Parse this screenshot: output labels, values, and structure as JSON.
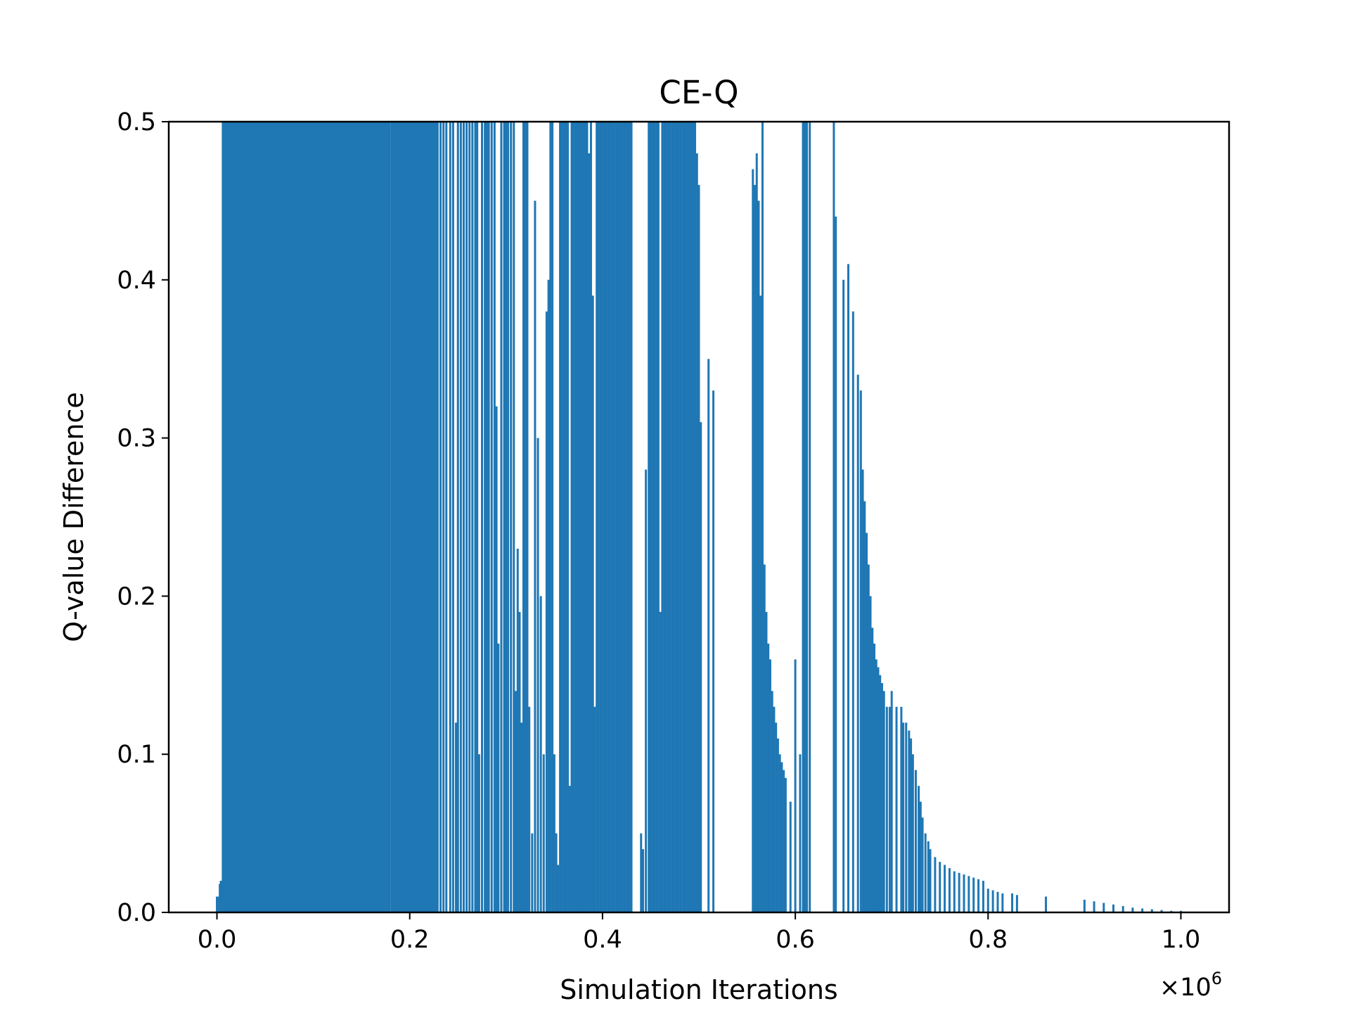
{
  "chart_data": {
    "type": "line",
    "title": "CE-Q",
    "xlabel": "Simulation Iterations",
    "ylabel": "Q-value Difference",
    "x_offset_label": "×10",
    "x_offset_exponent": "6",
    "xlim": [
      -0.05,
      1.05
    ],
    "ylim": [
      0.0,
      0.5
    ],
    "x_ticks": [
      0.0,
      0.2,
      0.4,
      0.6,
      0.8,
      1.0
    ],
    "x_tick_labels": [
      "0.0",
      "0.2",
      "0.4",
      "0.6",
      "0.8",
      "1.0"
    ],
    "y_ticks": [
      0.0,
      0.1,
      0.2,
      0.3,
      0.4,
      0.5
    ],
    "y_tick_labels": [
      "0.0",
      "0.1",
      "0.2",
      "0.3",
      "0.4",
      "0.5"
    ],
    "grid": false,
    "series_color": "#1f77b4",
    "solid_fill_regions": [
      {
        "x_start": 0.005,
        "x_end": 0.18,
        "y": 0.5
      },
      {
        "x_start": 0.18,
        "x_end": 0.23,
        "y": 0.5
      }
    ],
    "spikes": [
      [
        0.0,
        0.01
      ],
      [
        0.001,
        0.01
      ],
      [
        0.003,
        0.018
      ],
      [
        0.004,
        0.02
      ],
      [
        0.182,
        0.5
      ],
      [
        0.185,
        0.5
      ],
      [
        0.19,
        0.5
      ],
      [
        0.195,
        0.5
      ],
      [
        0.2,
        0.5
      ],
      [
        0.205,
        0.5
      ],
      [
        0.21,
        0.5
      ],
      [
        0.215,
        0.5
      ],
      [
        0.22,
        0.5
      ],
      [
        0.225,
        0.5
      ],
      [
        0.228,
        0.5
      ],
      [
        0.232,
        0.5
      ],
      [
        0.235,
        0.5
      ],
      [
        0.238,
        0.5
      ],
      [
        0.242,
        0.5
      ],
      [
        0.245,
        0.5
      ],
      [
        0.248,
        0.12
      ],
      [
        0.25,
        0.5
      ],
      [
        0.253,
        0.5
      ],
      [
        0.256,
        0.5
      ],
      [
        0.259,
        0.5
      ],
      [
        0.262,
        0.5
      ],
      [
        0.265,
        0.5
      ],
      [
        0.268,
        0.5
      ],
      [
        0.27,
        0.5
      ],
      [
        0.272,
        0.1
      ],
      [
        0.275,
        0.5
      ],
      [
        0.278,
        0.5
      ],
      [
        0.28,
        0.5
      ],
      [
        0.282,
        0.5
      ],
      [
        0.285,
        0.5
      ],
      [
        0.288,
        0.5
      ],
      [
        0.29,
        0.32
      ],
      [
        0.292,
        0.17
      ],
      [
        0.295,
        0.5
      ],
      [
        0.298,
        0.5
      ],
      [
        0.3,
        0.5
      ],
      [
        0.302,
        0.5
      ],
      [
        0.305,
        0.5
      ],
      [
        0.308,
        0.5
      ],
      [
        0.31,
        0.14
      ],
      [
        0.312,
        0.23
      ],
      [
        0.314,
        0.19
      ],
      [
        0.316,
        0.12
      ],
      [
        0.318,
        0.5
      ],
      [
        0.32,
        0.5
      ],
      [
        0.322,
        0.5
      ],
      [
        0.324,
        0.13
      ],
      [
        0.327,
        0.05
      ],
      [
        0.33,
        0.45
      ],
      [
        0.333,
        0.3
      ],
      [
        0.336,
        0.2
      ],
      [
        0.339,
        0.1
      ],
      [
        0.342,
        0.38
      ],
      [
        0.344,
        0.4
      ],
      [
        0.346,
        0.5
      ],
      [
        0.348,
        0.5
      ],
      [
        0.35,
        0.1
      ],
      [
        0.352,
        0.05
      ],
      [
        0.354,
        0.03
      ],
      [
        0.356,
        0.5
      ],
      [
        0.358,
        0.5
      ],
      [
        0.36,
        0.5
      ],
      [
        0.362,
        0.5
      ],
      [
        0.364,
        0.5
      ],
      [
        0.366,
        0.08
      ],
      [
        0.368,
        0.5
      ],
      [
        0.37,
        0.5
      ],
      [
        0.372,
        0.5
      ],
      [
        0.374,
        0.5
      ],
      [
        0.376,
        0.5
      ],
      [
        0.378,
        0.5
      ],
      [
        0.38,
        0.5
      ],
      [
        0.382,
        0.5
      ],
      [
        0.384,
        0.5
      ],
      [
        0.386,
        0.48
      ],
      [
        0.388,
        0.5
      ],
      [
        0.39,
        0.39
      ],
      [
        0.392,
        0.13
      ],
      [
        0.394,
        0.5
      ],
      [
        0.396,
        0.5
      ],
      [
        0.398,
        0.5
      ],
      [
        0.4,
        0.5
      ],
      [
        0.402,
        0.5
      ],
      [
        0.404,
        0.5
      ],
      [
        0.406,
        0.5
      ],
      [
        0.408,
        0.5
      ],
      [
        0.41,
        0.5
      ],
      [
        0.412,
        0.5
      ],
      [
        0.414,
        0.5
      ],
      [
        0.416,
        0.5
      ],
      [
        0.418,
        0.5
      ],
      [
        0.42,
        0.5
      ],
      [
        0.422,
        0.5
      ],
      [
        0.424,
        0.5
      ],
      [
        0.426,
        0.5
      ],
      [
        0.428,
        0.5
      ],
      [
        0.43,
        0.5
      ],
      [
        0.44,
        0.05
      ],
      [
        0.442,
        0.04
      ],
      [
        0.445,
        0.28
      ],
      [
        0.448,
        0.5
      ],
      [
        0.45,
        0.5
      ],
      [
        0.452,
        0.5
      ],
      [
        0.454,
        0.5
      ],
      [
        0.456,
        0.5
      ],
      [
        0.458,
        0.5
      ],
      [
        0.46,
        0.19
      ],
      [
        0.462,
        0.5
      ],
      [
        0.464,
        0.5
      ],
      [
        0.466,
        0.5
      ],
      [
        0.468,
        0.5
      ],
      [
        0.47,
        0.5
      ],
      [
        0.472,
        0.5
      ],
      [
        0.474,
        0.5
      ],
      [
        0.476,
        0.5
      ],
      [
        0.478,
        0.5
      ],
      [
        0.48,
        0.5
      ],
      [
        0.482,
        0.5
      ],
      [
        0.484,
        0.5
      ],
      [
        0.486,
        0.5
      ],
      [
        0.488,
        0.5
      ],
      [
        0.49,
        0.5
      ],
      [
        0.492,
        0.5
      ],
      [
        0.494,
        0.5
      ],
      [
        0.496,
        0.5
      ],
      [
        0.498,
        0.48
      ],
      [
        0.5,
        0.46
      ],
      [
        0.502,
        0.31
      ],
      [
        0.51,
        0.35
      ],
      [
        0.515,
        0.33
      ],
      [
        0.556,
        0.47
      ],
      [
        0.558,
        0.46
      ],
      [
        0.56,
        0.48
      ],
      [
        0.562,
        0.45
      ],
      [
        0.564,
        0.39
      ],
      [
        0.566,
        0.5
      ],
      [
        0.568,
        0.22
      ],
      [
        0.57,
        0.19
      ],
      [
        0.572,
        0.17
      ],
      [
        0.574,
        0.16
      ],
      [
        0.576,
        0.14
      ],
      [
        0.578,
        0.13
      ],
      [
        0.58,
        0.12
      ],
      [
        0.582,
        0.11
      ],
      [
        0.584,
        0.1
      ],
      [
        0.586,
        0.095
      ],
      [
        0.588,
        0.09
      ],
      [
        0.59,
        0.085
      ],
      [
        0.595,
        0.07
      ],
      [
        0.6,
        0.16
      ],
      [
        0.605,
        0.1
      ],
      [
        0.608,
        0.5
      ],
      [
        0.61,
        0.5
      ],
      [
        0.612,
        0.5
      ],
      [
        0.615,
        0.5
      ],
      [
        0.64,
        0.5
      ],
      [
        0.642,
        0.44
      ],
      [
        0.65,
        0.4
      ],
      [
        0.655,
        0.41
      ],
      [
        0.66,
        0.38
      ],
      [
        0.665,
        0.34
      ],
      [
        0.668,
        0.33
      ],
      [
        0.67,
        0.28
      ],
      [
        0.672,
        0.26
      ],
      [
        0.674,
        0.24
      ],
      [
        0.676,
        0.22
      ],
      [
        0.678,
        0.2
      ],
      [
        0.68,
        0.18
      ],
      [
        0.682,
        0.17
      ],
      [
        0.684,
        0.16
      ],
      [
        0.686,
        0.155
      ],
      [
        0.688,
        0.15
      ],
      [
        0.69,
        0.145
      ],
      [
        0.692,
        0.14
      ],
      [
        0.695,
        0.13
      ],
      [
        0.698,
        0.13
      ],
      [
        0.7,
        0.14
      ],
      [
        0.705,
        0.13
      ],
      [
        0.71,
        0.13
      ],
      [
        0.712,
        0.12
      ],
      [
        0.715,
        0.12
      ],
      [
        0.718,
        0.115
      ],
      [
        0.72,
        0.11
      ],
      [
        0.722,
        0.1
      ],
      [
        0.725,
        0.09
      ],
      [
        0.728,
        0.08
      ],
      [
        0.73,
        0.07
      ],
      [
        0.732,
        0.06
      ],
      [
        0.735,
        0.05
      ],
      [
        0.738,
        0.045
      ],
      [
        0.74,
        0.04
      ],
      [
        0.745,
        0.035
      ],
      [
        0.75,
        0.032
      ],
      [
        0.755,
        0.03
      ],
      [
        0.76,
        0.028
      ],
      [
        0.765,
        0.026
      ],
      [
        0.77,
        0.025
      ],
      [
        0.775,
        0.024
      ],
      [
        0.78,
        0.023
      ],
      [
        0.785,
        0.022
      ],
      [
        0.79,
        0.021
      ],
      [
        0.795,
        0.02
      ],
      [
        0.8,
        0.015
      ],
      [
        0.805,
        0.014
      ],
      [
        0.81,
        0.013
      ],
      [
        0.815,
        0.012
      ],
      [
        0.825,
        0.012
      ],
      [
        0.83,
        0.011
      ],
      [
        0.86,
        0.01
      ],
      [
        0.9,
        0.008
      ],
      [
        0.91,
        0.007
      ],
      [
        0.92,
        0.006
      ],
      [
        0.93,
        0.005
      ],
      [
        0.94,
        0.004
      ],
      [
        0.95,
        0.003
      ],
      [
        0.96,
        0.0025
      ],
      [
        0.97,
        0.002
      ],
      [
        0.98,
        0.0015
      ],
      [
        0.99,
        0.001
      ],
      [
        1.0,
        0.001
      ]
    ]
  }
}
